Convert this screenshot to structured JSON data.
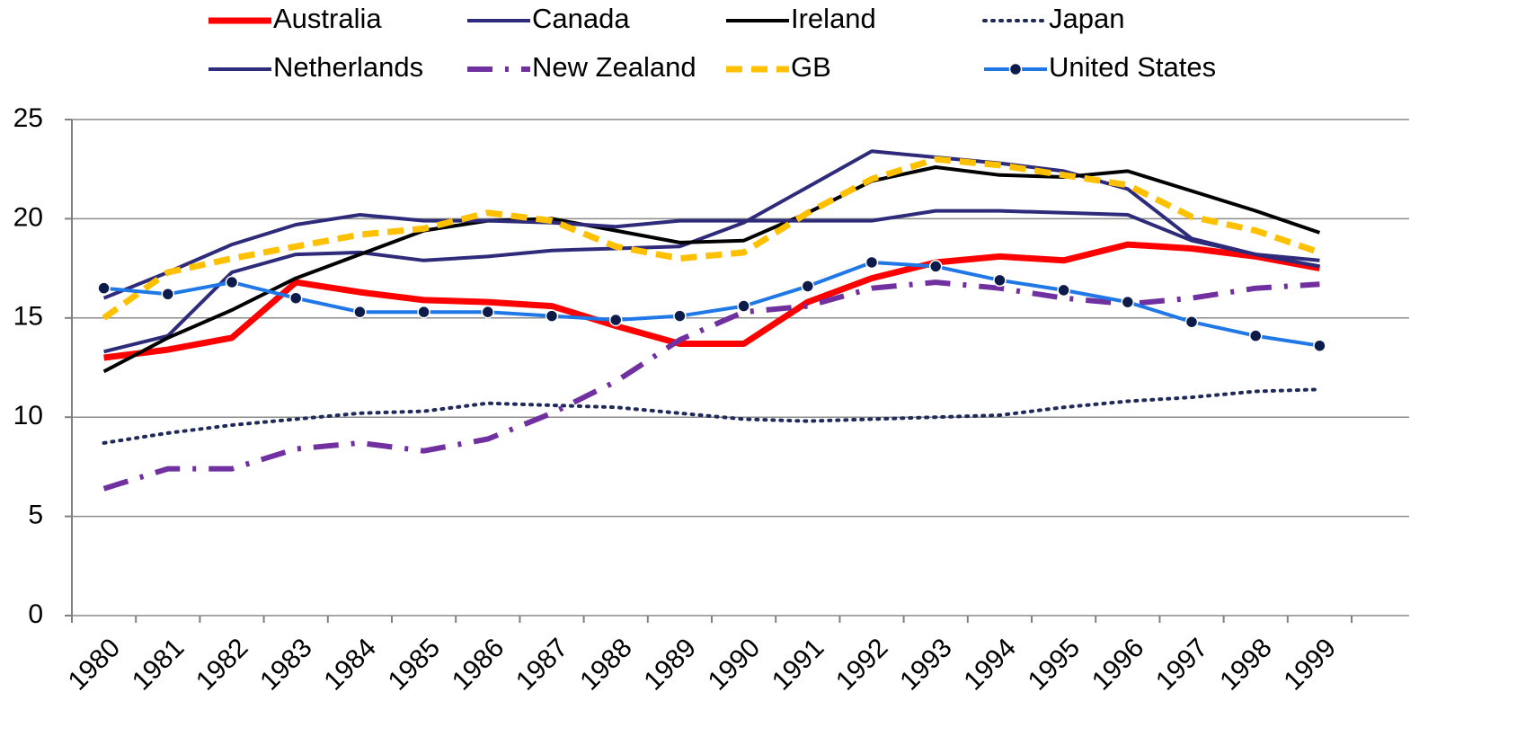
{
  "chart_data": {
    "type": "line",
    "categories": [
      "1980",
      "1981",
      "1982",
      "1983",
      "1984",
      "1985",
      "1986",
      "1987",
      "1988",
      "1989",
      "1990",
      "1991",
      "1992",
      "1993",
      "1994",
      "1995",
      "1996",
      "1997",
      "1998",
      "1999"
    ],
    "ylim": [
      0,
      25
    ],
    "yticks": [
      0,
      5,
      10,
      15,
      20,
      25
    ],
    "grid": true,
    "legend": "top",
    "series": [
      {
        "name": "Australia",
        "color": "#ff0000",
        "width": 7,
        "dash": "solid",
        "values": [
          13.0,
          13.4,
          14.0,
          16.8,
          16.3,
          15.9,
          15.8,
          15.6,
          14.6,
          13.7,
          13.7,
          15.8,
          17.0,
          17.8,
          18.1,
          17.9,
          18.7,
          18.5,
          18.1,
          17.5
        ]
      },
      {
        "name": "Canada",
        "color": "#2e2b7a",
        "width": 4,
        "dash": "solid",
        "values": [
          13.3,
          14.1,
          17.3,
          18.2,
          18.3,
          17.9,
          18.1,
          18.4,
          18.5,
          18.6,
          19.8,
          21.6,
          23.4,
          23.1,
          22.8,
          22.4,
          21.5,
          19.0,
          18.2,
          17.6
        ]
      },
      {
        "name": "Ireland",
        "color": "#000000",
        "width": 4,
        "dash": "solid",
        "values": [
          12.3,
          14.0,
          15.4,
          17.0,
          18.2,
          19.4,
          19.9,
          20.0,
          19.4,
          18.8,
          18.9,
          20.3,
          21.9,
          22.6,
          22.2,
          22.1,
          22.4,
          21.4,
          20.4,
          19.3
        ]
      },
      {
        "name": "Japan",
        "color": "#1f2a5a",
        "width": 4,
        "dash": "dot",
        "values": [
          8.7,
          9.2,
          9.6,
          9.9,
          10.2,
          10.3,
          10.7,
          10.6,
          10.5,
          10.2,
          9.9,
          9.8,
          9.9,
          10.0,
          10.1,
          10.5,
          10.8,
          11.0,
          11.3,
          11.4
        ]
      },
      {
        "name": "Netherlands",
        "color": "#2e2b7a",
        "width": 4,
        "dash": "solid",
        "values": [
          16.0,
          17.3,
          18.7,
          19.7,
          20.2,
          19.9,
          19.9,
          19.8,
          19.6,
          19.9,
          19.9,
          19.9,
          19.9,
          20.4,
          20.4,
          20.3,
          20.2,
          18.9,
          18.2,
          17.9
        ]
      },
      {
        "name": "New Zealand",
        "color": "#7030a0",
        "width": 6,
        "dash": "dashdot",
        "values": [
          6.4,
          7.4,
          7.4,
          8.4,
          8.7,
          8.3,
          8.9,
          10.2,
          11.8,
          13.9,
          15.3,
          15.6,
          16.5,
          16.8,
          16.5,
          16.0,
          15.7,
          16.0,
          16.5,
          16.7
        ]
      },
      {
        "name": "GB",
        "color": "#ffc000",
        "width": 7,
        "dash": "dash",
        "values": [
          15.0,
          17.3,
          18.0,
          18.6,
          19.2,
          19.5,
          20.3,
          19.9,
          18.6,
          18.0,
          18.3,
          20.3,
          22.0,
          23.0,
          22.7,
          22.2,
          21.7,
          20.1,
          19.4,
          18.3
        ]
      },
      {
        "name": "United States",
        "color": "#1f78e6",
        "width": 4,
        "dash": "solid",
        "markers": true,
        "values": [
          16.5,
          16.2,
          16.8,
          16.0,
          15.3,
          15.3,
          15.3,
          15.1,
          14.9,
          15.1,
          15.6,
          16.6,
          17.8,
          17.6,
          16.9,
          16.4,
          15.8,
          14.8,
          14.1,
          13.6
        ]
      }
    ]
  }
}
